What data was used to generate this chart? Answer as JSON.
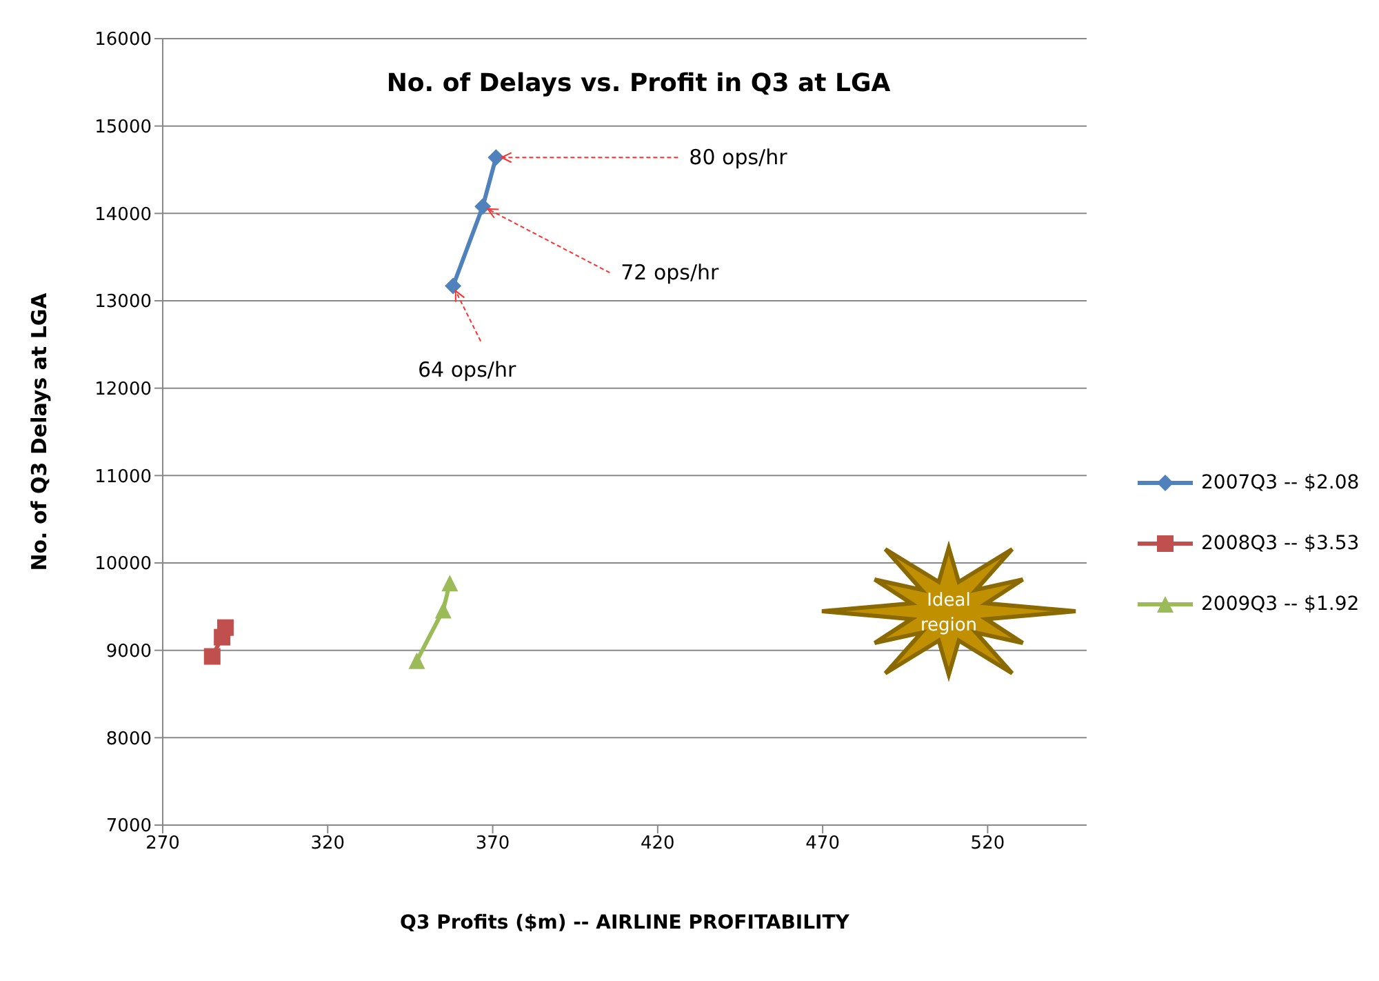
{
  "chart_data": {
    "type": "line",
    "title": "No. of Delays  vs.  Profit in Q3 at LGA",
    "xlabel": "Q3 Profits ($m)  --  AIRLINE PROFITABILITY",
    "ylabel": "No. of Q3 Delays at LGA",
    "series": [
      {
        "name": "2007Q3 -- $2.08",
        "color": "#4f81bd",
        "marker": "diamond",
        "x": [
          358,
          367,
          371
        ],
        "values": [
          13170,
          14080,
          14640
        ]
      },
      {
        "name": "2008Q3 -- $3.53",
        "color": "#c0504d",
        "marker": "square",
        "x": [
          285,
          288,
          289
        ],
        "values": [
          8930,
          9150,
          9260
        ]
      },
      {
        "name": "2009Q3 -- $1.92",
        "color": "#9bbb59",
        "marker": "triangle",
        "x": [
          347,
          355,
          357
        ],
        "values": [
          8880,
          9460,
          9770
        ]
      }
    ],
    "xlim": [
      270,
      550
    ],
    "xticks": [
      270,
      320,
      370,
      420,
      470,
      520
    ],
    "ylim": [
      7000,
      16000
    ],
    "yticks": [
      7000,
      8000,
      9000,
      10000,
      11000,
      12000,
      13000,
      14000,
      15000,
      16000
    ],
    "grid": "y",
    "legend": "right",
    "line_style": "solid",
    "annotations": [
      {
        "text": "80 ops/hr",
        "x": 371,
        "y": 14640
      },
      {
        "text": "72 ops/hr",
        "x": 367,
        "y": 14080
      },
      {
        "text": "64 ops/hr",
        "x": 358,
        "y": 13170
      },
      "Ideal region"
    ]
  }
}
